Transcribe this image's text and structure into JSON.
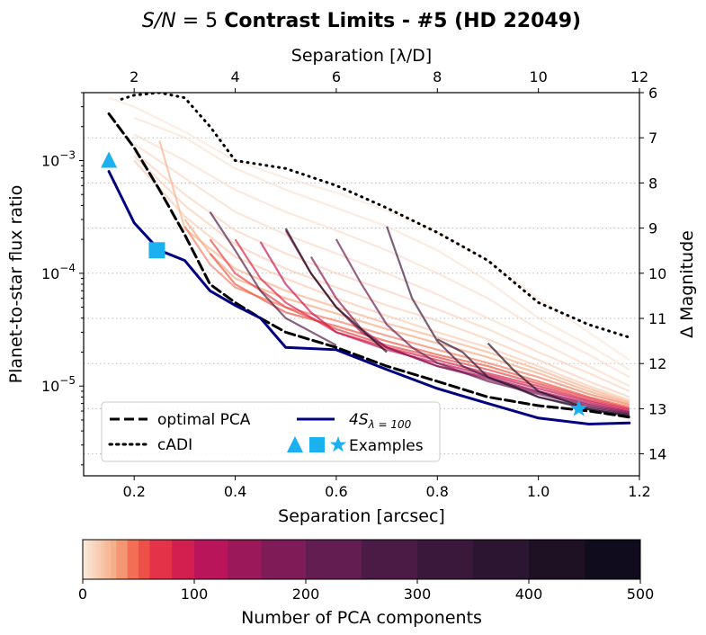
{
  "chart_data": {
    "type": "line",
    "title": {
      "prefix": "S/N",
      "middle": " = 5 ",
      "bold": "Contrast Limits - #5 (HD 22049)"
    },
    "xlabel": "Separation [arcsec]",
    "ylabel": "Planet-to-star flux ratio",
    "top_xlabel": "Separation [λ/D]",
    "right_ylabel": "Δ Magnitude",
    "x_range": [
      0.1,
      1.2
    ],
    "y_range": [
      1.6e-06,
      0.004
    ],
    "y_scale": "log",
    "x_ticks": [
      "0.2",
      "0.4",
      "0.6",
      "0.8",
      "1.0",
      "1.2"
    ],
    "x_tick_values": [
      0.2,
      0.4,
      0.6,
      0.8,
      1.0,
      1.2
    ],
    "y_ticks": [
      {
        "value": 0.001,
        "base": "10",
        "exp": "−3"
      },
      {
        "value": 0.0001,
        "base": "10",
        "exp": "−4"
      },
      {
        "value": 1e-05,
        "base": "10",
        "exp": "−5"
      }
    ],
    "top_ticks": [
      "2",
      "4",
      "6",
      "8",
      "10",
      "12"
    ],
    "top_tick_values": [
      2,
      4,
      6,
      8,
      10,
      12
    ],
    "lambda_over_d_arcsec": 0.1,
    "right_ticks": [
      "6",
      "7",
      "8",
      "9",
      "10",
      "11",
      "12",
      "13",
      "14"
    ],
    "right_tick_values": [
      6,
      7,
      8,
      9,
      10,
      11,
      12,
      13,
      14
    ],
    "magnitude_grid": "dotted",
    "series": [
      {
        "name": "optimal PCA",
        "style": "dashed",
        "color": "#000000",
        "x": [
          0.15,
          0.2,
          0.25,
          0.3,
          0.35,
          0.4,
          0.45,
          0.5,
          0.6,
          0.7,
          0.8,
          0.9,
          1.0,
          1.1,
          1.18
        ],
        "y": [
          0.0026,
          0.0013,
          0.00055,
          0.00022,
          8e-05,
          5.5e-05,
          4e-05,
          3e-05,
          2.2e-05,
          1.5e-05,
          1.1e-05,
          8e-06,
          6.7e-06,
          6e-06,
          5.3e-06
        ]
      },
      {
        "name": "cADI",
        "style": "dotted",
        "color": "#000000",
        "x": [
          0.175,
          0.2,
          0.25,
          0.3,
          0.35,
          0.4,
          0.5,
          0.6,
          0.7,
          0.8,
          0.9,
          1.0,
          1.1,
          1.18
        ],
        "y": [
          0.0035,
          0.0038,
          0.004,
          0.0036,
          0.002,
          0.001,
          0.00085,
          0.0006,
          0.00038,
          0.00023,
          0.00013,
          5.5e-05,
          3.5e-05,
          2.7e-05
        ]
      },
      {
        "name": "4S",
        "subscript": "λ = 100",
        "style": "solid",
        "color": "#000080",
        "x": [
          0.15,
          0.2,
          0.25,
          0.3,
          0.35,
          0.4,
          0.45,
          0.5,
          0.6,
          0.7,
          0.8,
          0.9,
          1.0,
          1.1,
          1.18
        ],
        "y": [
          0.0008,
          0.00028,
          0.00016,
          0.00013,
          7e-05,
          5.2e-05,
          4e-05,
          2.2e-05,
          2.1e-05,
          1.4e-05,
          9.5e-06,
          7e-06,
          5.2e-06,
          4.6e-06,
          4.7e-06
        ]
      }
    ],
    "pca_curves": {
      "description_units": "each curve: number of PCA components k, separations x (arcsec), flux ratios y",
      "curves": [
        {
          "k": 5,
          "x": [
            0.15,
            0.2,
            0.3,
            0.4,
            0.5,
            0.6,
            0.7,
            0.8,
            0.9,
            1.0,
            1.1,
            1.18
          ],
          "y": [
            0.0036,
            0.003,
            0.0018,
            0.001,
            0.0007,
            0.00052,
            0.00036,
            0.00023,
            0.00013,
            6e-05,
            3e-05,
            1.7e-05
          ]
        },
        {
          "k": 8,
          "x": [
            0.2,
            0.3,
            0.4,
            0.5,
            0.6,
            0.7,
            0.8,
            0.9,
            1.0,
            1.1,
            1.18
          ],
          "y": [
            0.0024,
            0.0016,
            0.00085,
            0.00055,
            0.00038,
            0.00026,
            0.00016,
            8.5e-05,
            4e-05,
            2.3e-05,
            1.4e-05
          ]
        },
        {
          "k": 10,
          "x": [
            0.2,
            0.3,
            0.4,
            0.5,
            0.6,
            0.7,
            0.8,
            0.9,
            1.0,
            1.1,
            1.18
          ],
          "y": [
            0.0017,
            0.001,
            0.00055,
            0.00035,
            0.00024,
            0.00016,
            0.0001,
            6e-05,
            3.2e-05,
            1.9e-05,
            1.2e-05
          ]
        },
        {
          "k": 12,
          "x": [
            0.2,
            0.3,
            0.4,
            0.5,
            0.6,
            0.7,
            0.8,
            0.9,
            1.0,
            1.1,
            1.18
          ],
          "y": [
            0.0014,
            0.0007,
            0.00035,
            0.00022,
            0.00015,
            0.0001,
            6.5e-05,
            4e-05,
            2.5e-05,
            1.5e-05,
            1e-05
          ]
        },
        {
          "k": 15,
          "x": [
            0.2,
            0.3,
            0.4,
            0.5,
            0.6,
            0.7,
            0.8,
            0.9,
            1.0,
            1.1,
            1.18
          ],
          "y": [
            0.0012,
            0.0005,
            0.00024,
            0.00015,
            0.0001,
            7e-05,
            4.8e-05,
            3.2e-05,
            2e-05,
            1.3e-05,
            9e-06
          ]
        },
        {
          "k": 18,
          "x": [
            0.2,
            0.3,
            0.4,
            0.5,
            0.6,
            0.7,
            0.8,
            0.9,
            1.0,
            1.1,
            1.18
          ],
          "y": [
            0.0011,
            0.0004,
            0.00018,
            0.00011,
            7.5e-05,
            5.2e-05,
            3.8e-05,
            2.6e-05,
            1.7e-05,
            1.1e-05,
            8e-06
          ]
        },
        {
          "k": 20,
          "x": [
            0.2,
            0.3,
            0.4,
            0.5,
            0.6,
            0.7,
            0.8,
            0.9,
            1.0,
            1.1,
            1.18
          ],
          "y": [
            0.001,
            0.00032,
            0.00014,
            9e-05,
            6e-05,
            4.2e-05,
            3e-05,
            2.2e-05,
            1.5e-05,
            1e-05,
            7.5e-06
          ]
        },
        {
          "k": 25,
          "x": [
            0.25,
            0.3,
            0.4,
            0.5,
            0.6,
            0.7,
            0.8,
            0.9,
            1.0,
            1.1,
            1.18
          ],
          "y": [
            0.0015,
            0.00025,
            0.00011,
            7e-05,
            5e-05,
            3.6e-05,
            2.7e-05,
            2e-05,
            1.4e-05,
            9.5e-06,
            7.2e-06
          ]
        },
        {
          "k": 30,
          "x": [
            0.3,
            0.35,
            0.4,
            0.5,
            0.6,
            0.7,
            0.8,
            0.9,
            1.0,
            1.1,
            1.18
          ],
          "y": [
            0.0003,
            0.00015,
            9e-05,
            6e-05,
            4.4e-05,
            3.2e-05,
            2.4e-05,
            1.8e-05,
            1.3e-05,
            9e-06,
            7e-06
          ]
        },
        {
          "k": 40,
          "x": [
            0.3,
            0.35,
            0.4,
            0.5,
            0.6,
            0.7,
            0.8,
            0.9,
            1.0,
            1.1,
            1.18
          ],
          "y": [
            0.00026,
            0.00012,
            7.5e-05,
            5e-05,
            3.8e-05,
            2.8e-05,
            2.1e-05,
            1.6e-05,
            1.2e-05,
            8.5e-06,
            6.8e-06
          ]
        },
        {
          "k": 50,
          "x": [
            0.35,
            0.4,
            0.5,
            0.6,
            0.7,
            0.8,
            0.9,
            1.0,
            1.1,
            1.18
          ],
          "y": [
            0.00015,
            8e-05,
            4.5e-05,
            3.4e-05,
            2.5e-05,
            1.9e-05,
            1.5e-05,
            1.1e-05,
            8e-06,
            6.5e-06
          ]
        },
        {
          "k": 60,
          "x": [
            0.35,
            0.4,
            0.5,
            0.6,
            0.7,
            0.8,
            0.9,
            1.0,
            1.1,
            1.18
          ],
          "y": [
            0.0002,
            0.0001,
            5e-05,
            3.2e-05,
            2.3e-05,
            1.8e-05,
            1.4e-05,
            1.05e-05,
            7.8e-06,
            6.3e-06
          ]
        },
        {
          "k": 80,
          "x": [
            0.4,
            0.45,
            0.5,
            0.6,
            0.7,
            0.8,
            0.9,
            1.0,
            1.1,
            1.18
          ],
          "y": [
            0.0002,
            9e-05,
            5.5e-05,
            3e-05,
            2.2e-05,
            1.7e-05,
            1.3e-05,
            1e-05,
            7.5e-06,
            6.2e-06
          ]
        },
        {
          "k": 100,
          "x": [
            0.45,
            0.5,
            0.55,
            0.6,
            0.7,
            0.8,
            0.9,
            1.0,
            1.1,
            1.18
          ],
          "y": [
            0.00019,
            8e-05,
            4.5e-05,
            3e-05,
            2.1e-05,
            1.6e-05,
            1.25e-05,
            9.5e-06,
            7.3e-06,
            6e-06
          ]
        },
        {
          "k": 130,
          "x": [
            0.5,
            0.55,
            0.6,
            0.65,
            0.7,
            0.8,
            0.9,
            1.0,
            1.1,
            1.18
          ],
          "y": [
            0.00024,
            0.0001,
            5e-05,
            3e-05,
            2.2e-05,
            1.5e-05,
            1.2e-05,
            9e-06,
            7e-06,
            5.9e-06
          ]
        },
        {
          "k": 160,
          "x": [
            0.55,
            0.6,
            0.65,
            0.7,
            0.8,
            0.9,
            1.0,
            1.1,
            1.18
          ],
          "y": [
            0.00014,
            6e-05,
            3.2e-05,
            2.2e-05,
            1.5e-05,
            1.15e-05,
            8.8e-06,
            6.8e-06,
            5.8e-06
          ]
        },
        {
          "k": 200,
          "x": [
            0.6,
            0.65,
            0.7,
            0.75,
            0.8,
            0.9,
            1.0,
            1.1,
            1.18
          ],
          "y": [
            0.0002,
            8e-05,
            3.5e-05,
            2.2e-05,
            1.6e-05,
            1.1e-05,
            8.5e-06,
            6.6e-06,
            5.7e-06
          ]
        },
        {
          "k": 250,
          "x": [
            0.35,
            0.4,
            0.45,
            0.5,
            0.6
          ],
          "y": [
            0.00035,
            0.00016,
            7e-05,
            4e-05,
            2.3e-05
          ]
        },
        {
          "k": 300,
          "x": [
            0.7,
            0.75,
            0.8,
            0.85,
            0.9,
            1.0,
            1.1,
            1.18
          ],
          "y": [
            0.00026,
            6e-05,
            2.5e-05,
            1.5e-05,
            1.2e-05,
            8e-06,
            6.4e-06,
            5.6e-06
          ]
        },
        {
          "k": 350,
          "x": [
            0.8,
            0.85,
            0.9,
            0.95,
            1.0,
            1.1,
            1.18
          ],
          "y": [
            2.6e-05,
            2e-05,
            1.2e-05,
            1e-05,
            8e-06,
            6.2e-06,
            5.5e-06
          ]
        },
        {
          "k": 400,
          "x": [
            0.9,
            0.95,
            1.0,
            1.05,
            1.1,
            1.18
          ],
          "y": [
            2.4e-05,
            1.4e-05,
            9e-06,
            7.5e-06,
            6.2e-06,
            5.4e-06
          ]
        },
        {
          "k": 450,
          "x": [
            0.5,
            0.55,
            0.6,
            0.7
          ],
          "y": [
            0.00025,
            0.0001,
            5e-05,
            2e-05
          ]
        }
      ]
    },
    "examples": [
      {
        "shape": "triangle",
        "x": 0.15,
        "y": 0.001,
        "color": "#1bb0f0"
      },
      {
        "shape": "square",
        "x": 0.245,
        "y": 0.00016,
        "color": "#1bb0f0"
      },
      {
        "shape": "star",
        "x": 1.08,
        "y": 6.3e-06,
        "color": "#1bb0f0"
      }
    ],
    "legend": {
      "placement": "lower-left",
      "entries": [
        {
          "label": "optimal PCA",
          "style": "dashed"
        },
        {
          "label": "cADI",
          "style": "dotted"
        },
        {
          "label": "4S",
          "subscript": "λ = 100",
          "style": "solid"
        },
        {
          "label": "Examples",
          "style": "markers"
        }
      ]
    },
    "colorbar": {
      "label": "Number of PCA components",
      "range": [
        0,
        500
      ],
      "ticks": [
        "0",
        "100",
        "200",
        "300",
        "400",
        "500"
      ],
      "tick_values": [
        0,
        100,
        200,
        300,
        400,
        500
      ],
      "colormap": "rocket (reversed)",
      "bounds": [
        0,
        2,
        4,
        6,
        8,
        10,
        12,
        14,
        16,
        18,
        20,
        25,
        30,
        40,
        50,
        60,
        80,
        100,
        130,
        160,
        200,
        250,
        300,
        350,
        400,
        450,
        500
      ]
    }
  }
}
